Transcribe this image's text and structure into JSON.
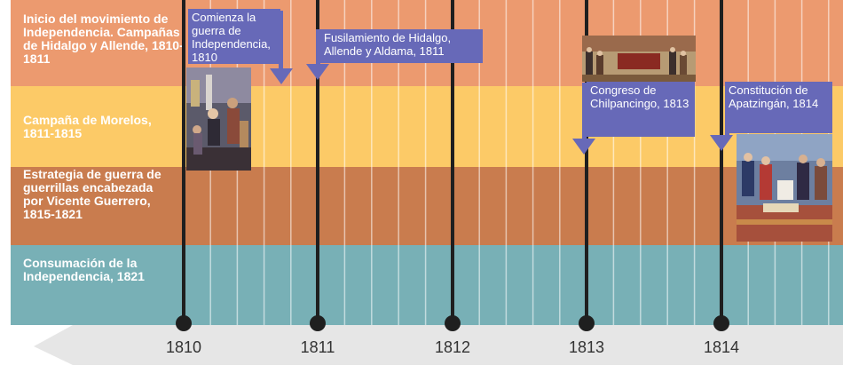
{
  "bands": [
    {
      "label": "Inicio del movimiento de Independencia. Campañas de Hidalgo y Allende, 1810-1811",
      "color": "#ec9a6f"
    },
    {
      "label": "Campaña de Morelos, 1811-1815",
      "color": "#fcca67"
    },
    {
      "label": "Estrategia de guerra de guerrillas encabezada por Vicente Guerrero, 1815-1821",
      "color": "#c97c4e"
    },
    {
      "label": "Consumación de la Independencia, 1821",
      "color": "#78b0b6"
    }
  ],
  "years": [
    "1810",
    "1811",
    "1812",
    "1813",
    "1814"
  ],
  "events": [
    {
      "label": "Comienza la guerra de Independencia, 1810"
    },
    {
      "label": "Fusilamiento de Hidalgo, Allende y Aldama, 1811"
    },
    {
      "label": "Congreso de Chilpancingo, 1813"
    },
    {
      "label": "Constitución de Apatzingán, 1814"
    }
  ],
  "colors": {
    "event_box": "#6769b8",
    "axis_arrow": "#e6e6e6",
    "year_line": "#1f1f1f"
  }
}
